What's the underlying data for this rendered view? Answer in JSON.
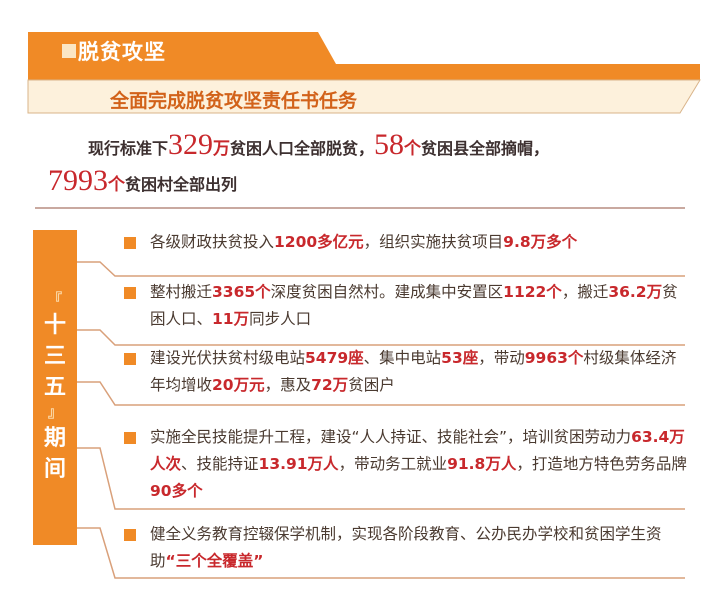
{
  "header": {
    "title": "脱贫攻坚",
    "subtitle": "全面完成脱贫攻坚责任书任务"
  },
  "summary": {
    "line1": [
      {
        "t": "现行标准下",
        "hl": false
      },
      {
        "t": "329",
        "num": true
      },
      {
        "t": "万",
        "unit": true
      },
      {
        "t": "贫困人口全部脱贫，",
        "hl": false
      },
      {
        "t": "58",
        "num": true
      },
      {
        "t": "个",
        "unit": true
      },
      {
        "t": "贫困县全部摘帽，",
        "hl": false
      }
    ],
    "line2": [
      {
        "t": "7993",
        "num": true
      },
      {
        "t": "个",
        "unit": true
      },
      {
        "t": "贫困村全部出列",
        "hl": false
      }
    ]
  },
  "period": {
    "open_bracket": "『",
    "chars": [
      "十",
      "三",
      "五"
    ],
    "close_bracket": "』",
    "chars2": [
      "期",
      "间"
    ]
  },
  "items": [
    {
      "segments": [
        [
          "各级财政扶贫投入",
          false
        ],
        [
          "1200多亿元",
          true
        ],
        [
          "，组织实施扶贫项目",
          false
        ],
        [
          "9.8万多个",
          true
        ]
      ]
    },
    {
      "segments": [
        [
          "整村搬迁",
          false
        ],
        [
          "3365个",
          true
        ],
        [
          "深度贫困自然村。建成集中安置区",
          false
        ],
        [
          "1122个",
          true
        ],
        [
          "，搬迁",
          false
        ],
        [
          "36.2万",
          true
        ],
        [
          "贫困人口、",
          false
        ],
        [
          "11万",
          true
        ],
        [
          "同步人口",
          false
        ]
      ]
    },
    {
      "segments": [
        [
          "建设光伏扶贫村级电站",
          false
        ],
        [
          "5479座",
          true
        ],
        [
          "、集中电站",
          false
        ],
        [
          "53座",
          true
        ],
        [
          "，带动",
          false
        ],
        [
          "9963个",
          true
        ],
        [
          "村级集体经济年均增收",
          false
        ],
        [
          "20万元",
          true
        ],
        [
          "，惠及",
          false
        ],
        [
          "72万",
          true
        ],
        [
          "贫困户",
          false
        ]
      ]
    },
    {
      "segments": [
        [
          "实施全民技能提升工程，建设“人人持证、技能社会”，培训贫困劳动力",
          false
        ],
        [
          "63.4万人次",
          true
        ],
        [
          "、技能持证",
          false
        ],
        [
          "13.91万人",
          true
        ],
        [
          "，带动务工就业",
          false
        ],
        [
          "91.8万人",
          true
        ],
        [
          "，打造地方特色劳务品牌",
          false
        ],
        [
          "90多个",
          true
        ]
      ]
    },
    {
      "segments": [
        [
          "健全义务教育控辍保学机制，实现各阶段教育、公办民办学校和贫困学生资助",
          false
        ],
        [
          "“三个全覆盖”",
          true
        ]
      ]
    }
  ],
  "colors": {
    "orange": "#f08a26",
    "red": "#c8282c",
    "cream": "#fdf3e3"
  }
}
